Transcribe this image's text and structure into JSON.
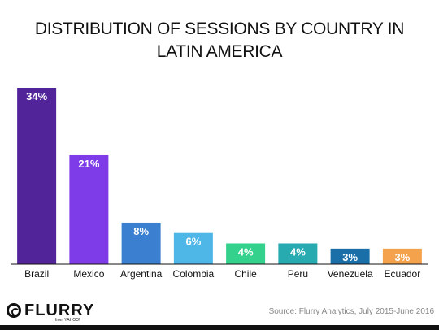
{
  "title_line1": "DISTRIBUTION OF SESSIONS BY COUNTRY IN",
  "title_line2": "LATIN AMERICA",
  "source": "Source: Flurry Analytics, July 2015-June 2016",
  "logo": {
    "name": "FLURRY",
    "sub": "from YAHOO!",
    "icon": "flurry-logo-icon"
  },
  "chart_data": {
    "type": "bar",
    "categories": [
      "Brazil",
      "Mexico",
      "Argentina",
      "Colombia",
      "Chile",
      "Peru",
      "Venezuela",
      "Ecuador"
    ],
    "values": [
      34,
      21,
      8,
      6,
      4,
      4,
      3,
      3
    ],
    "labels": [
      "34%",
      "21%",
      "8%",
      "6%",
      "4%",
      "4%",
      "3%",
      "3%"
    ],
    "colors": [
      "#52249a",
      "#7d3ce8",
      "#3a7fd0",
      "#4fb6e8",
      "#33d18c",
      "#27aab0",
      "#1a6fa8",
      "#f4a24c"
    ],
    "title": "DISTRIBUTION OF SESSIONS BY COUNTRY IN LATIN AMERICA",
    "xlabel": "",
    "ylabel": "",
    "ylim": [
      0,
      34
    ],
    "grid": false,
    "legend": "none"
  }
}
